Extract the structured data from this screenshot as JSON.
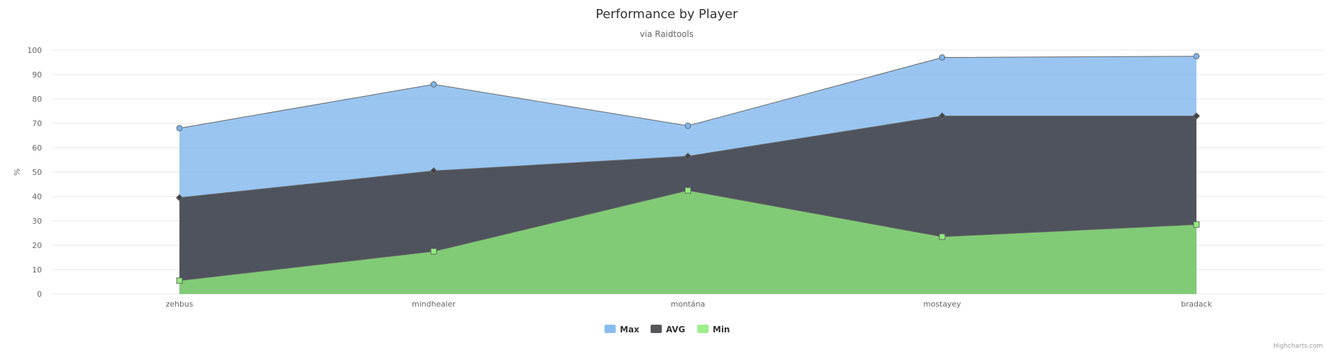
{
  "chart_data": {
    "type": "area",
    "title": "Performance by Player",
    "subtitle": "via Raidtools",
    "ylabel": "%",
    "xlabel": "",
    "ylim": [
      0,
      100
    ],
    "yticks": [
      0,
      10,
      20,
      30,
      40,
      50,
      60,
      70,
      80,
      90,
      100
    ],
    "grid": true,
    "legend_position": "bottom-center",
    "categories": [
      "zehbus",
      "mindhealer",
      "montána",
      "mostayey",
      "bradack"
    ],
    "series": [
      {
        "name": "Max",
        "values": [
          68,
          86,
          69,
          97,
          97.5
        ],
        "color": "#7cb5ec",
        "marker": "circle"
      },
      {
        "name": "AVG",
        "values": [
          39.5,
          50.5,
          56.5,
          73,
          73
        ],
        "color": "#434348",
        "marker": "diamond"
      },
      {
        "name": "Min",
        "values": [
          5.5,
          17.5,
          42.5,
          23.5,
          28.5
        ],
        "color": "#90ed7d",
        "marker": "square"
      }
    ]
  },
  "credits": "Highcharts.com"
}
